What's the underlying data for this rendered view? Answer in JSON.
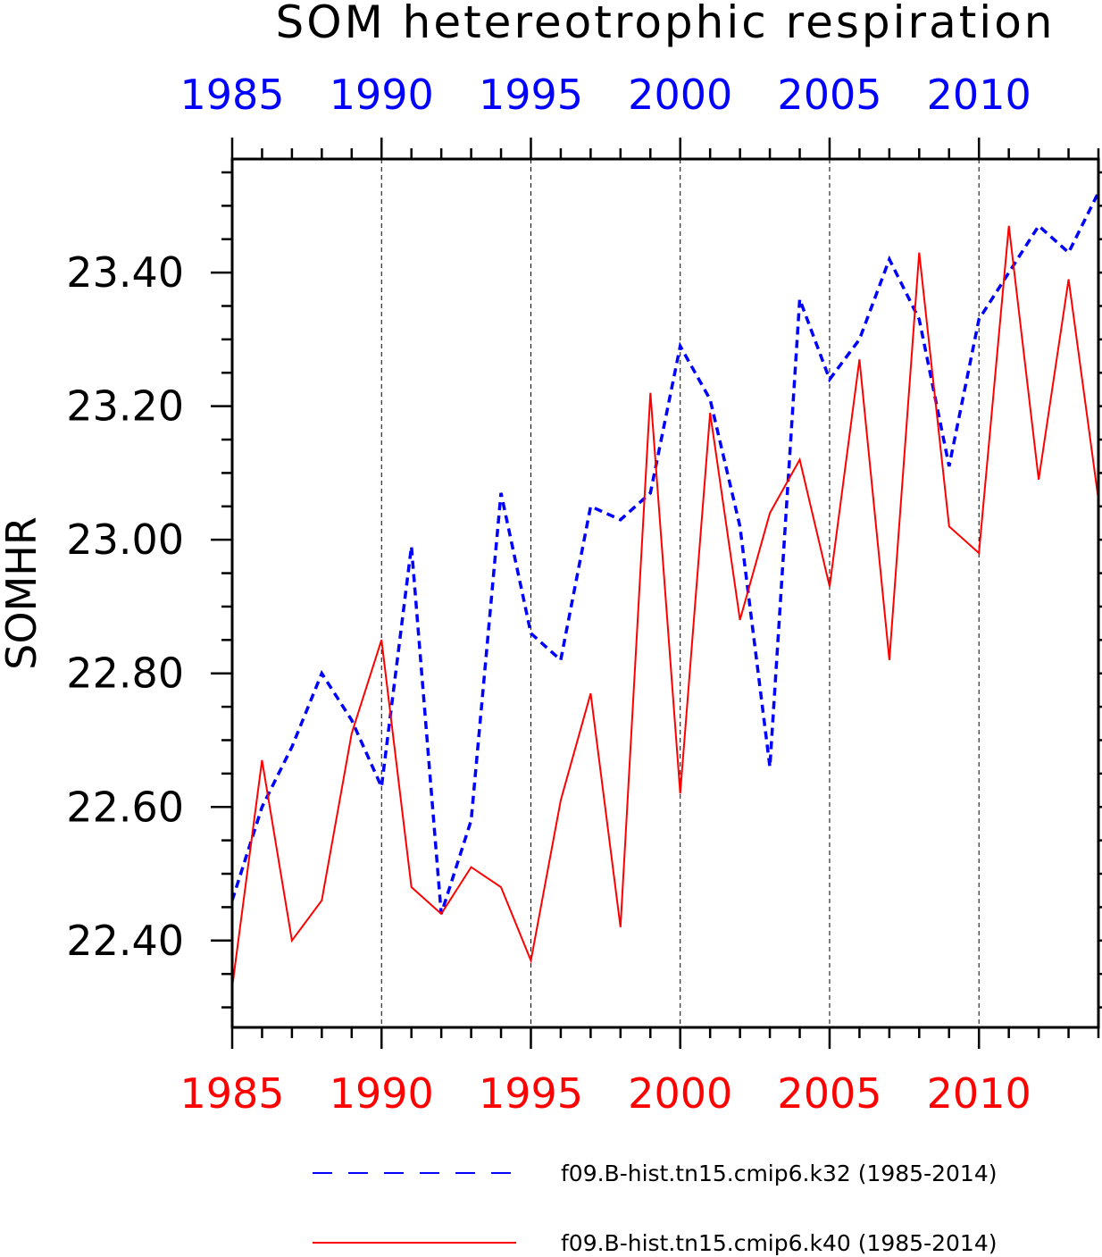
{
  "chart_data": {
    "type": "line",
    "title": "SOM hetereotrophic respiration",
    "ylabel": "SOMHR",
    "xlabel": "",
    "xlim": [
      1985,
      2014
    ],
    "ylim": [
      22.27,
      23.57
    ],
    "x_ticks": [
      1985,
      1990,
      1995,
      2000,
      2005,
      2010
    ],
    "y_ticks": [
      22.4,
      22.6,
      22.8,
      23.0,
      23.2,
      23.4
    ],
    "y_tick_labels": [
      "22.40",
      "22.60",
      "22.80",
      "23.00",
      "23.20",
      "23.40"
    ],
    "grid": "vertical dashed at major x ticks",
    "top_axis_color": "#0000ff",
    "bottom_axis_color": "#ff0000",
    "legend_position": "bottom",
    "x": [
      1985,
      1986,
      1987,
      1988,
      1989,
      1990,
      1991,
      1992,
      1993,
      1994,
      1995,
      1996,
      1997,
      1998,
      1999,
      2000,
      2001,
      2002,
      2003,
      2004,
      2005,
      2006,
      2007,
      2008,
      2009,
      2010,
      2011,
      2012,
      2013,
      2014
    ],
    "series": [
      {
        "name": "f09.B-hist.tn15.cmip6.k32 (1985-2014)",
        "color": "#0000ff",
        "dash": "dashed",
        "values": [
          22.46,
          22.6,
          22.69,
          22.8,
          22.73,
          22.63,
          22.99,
          22.44,
          22.58,
          23.07,
          22.86,
          22.82,
          23.05,
          23.03,
          23.07,
          23.29,
          23.21,
          23.02,
          22.66,
          23.36,
          23.24,
          23.3,
          23.42,
          23.33,
          23.11,
          23.33,
          23.4,
          23.47,
          23.43,
          23.52
        ]
      },
      {
        "name": "f09.B-hist.tn15.cmip6.k40 (1985-2014)",
        "color": "#ff0000",
        "dash": "solid",
        "values": [
          22.33,
          22.67,
          22.4,
          22.46,
          22.71,
          22.85,
          22.48,
          22.44,
          22.51,
          22.48,
          22.37,
          22.61,
          22.77,
          22.42,
          23.22,
          22.62,
          23.19,
          22.88,
          23.04,
          23.12,
          22.93,
          23.27,
          22.82,
          23.43,
          23.02,
          22.98,
          23.47,
          23.09,
          23.39,
          23.06
        ]
      }
    ]
  }
}
